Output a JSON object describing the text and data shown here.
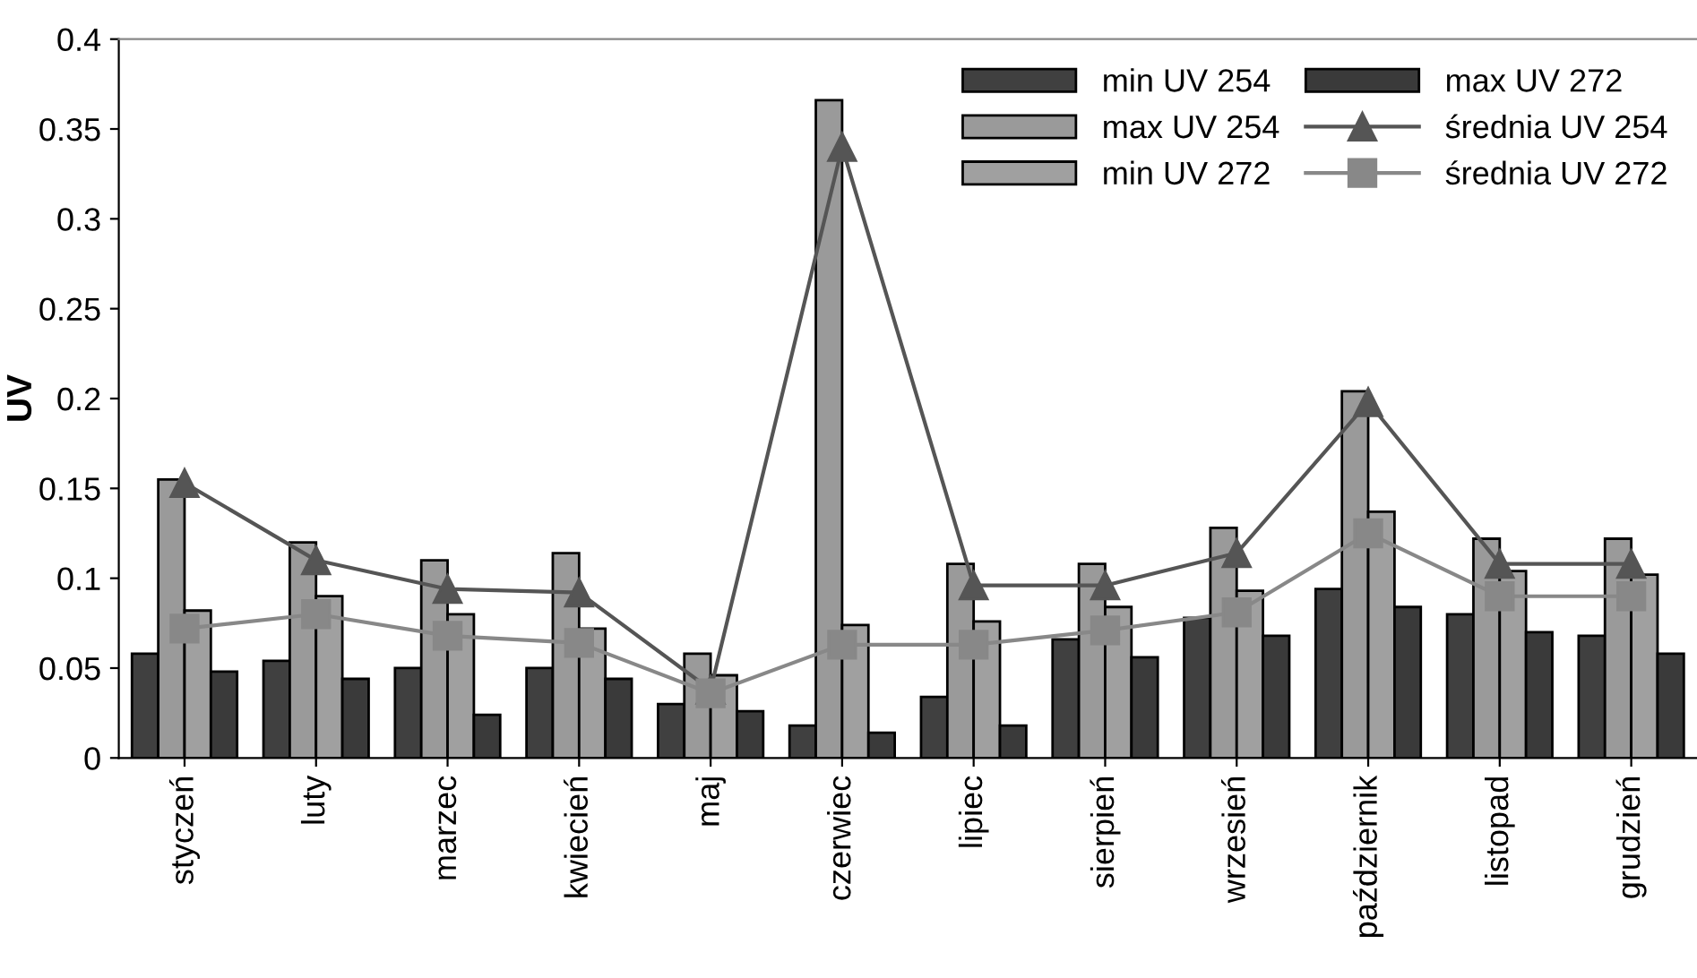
{
  "chart_data": {
    "type": "bar",
    "ylabel": "UV",
    "categories": [
      "styczeń",
      "luty",
      "marzec",
      "kwiecień",
      "maj",
      "czerwiec",
      "lipiec",
      "sierpień",
      "wrzesień",
      "październik",
      "listopad",
      "grudzień"
    ],
    "series": [
      {
        "name": "min UV 254",
        "color": "#404040",
        "values": [
          0.058,
          0.054,
          0.05,
          0.05,
          0.03,
          0.018,
          0.034,
          0.066,
          0.078,
          0.094,
          0.08,
          0.068
        ]
      },
      {
        "name": "max UV 254",
        "color": "#9a9a9a",
        "values": [
          0.155,
          0.12,
          0.11,
          0.114,
          0.058,
          0.366,
          0.108,
          0.108,
          0.128,
          0.204,
          0.122,
          0.122
        ]
      },
      {
        "name": "min UV 272",
        "color": "#a0a0a0",
        "values": [
          0.082,
          0.09,
          0.08,
          0.072,
          0.046,
          0.074,
          0.076,
          0.084,
          0.093,
          0.137,
          0.104,
          0.102
        ]
      },
      {
        "name": "max UV 272",
        "color": "#3a3a3a",
        "values": [
          0.048,
          0.044,
          0.024,
          0.044,
          0.026,
          0.014,
          0.018,
          0.056,
          0.068,
          0.084,
          0.07,
          0.058
        ]
      },
      {
        "name": "średnia UV 254",
        "type": "line",
        "marker": "triangle",
        "color": "#555555",
        "values": [
          0.153,
          0.11,
          0.094,
          0.092,
          0.038,
          0.34,
          0.096,
          0.096,
          0.114,
          0.198,
          0.108,
          0.108
        ]
      },
      {
        "name": "średnia UV 272",
        "type": "line",
        "marker": "square",
        "color": "#888888",
        "values": [
          0.072,
          0.08,
          0.068,
          0.064,
          0.036,
          0.063,
          0.063,
          0.071,
          0.081,
          0.125,
          0.09,
          0.09
        ]
      }
    ],
    "ylim": [
      0,
      0.4
    ],
    "yticks": [
      0,
      0.05,
      0.1,
      0.15,
      0.2,
      0.25,
      0.3,
      0.35,
      0.4
    ],
    "grid": false,
    "legend": "top right"
  }
}
